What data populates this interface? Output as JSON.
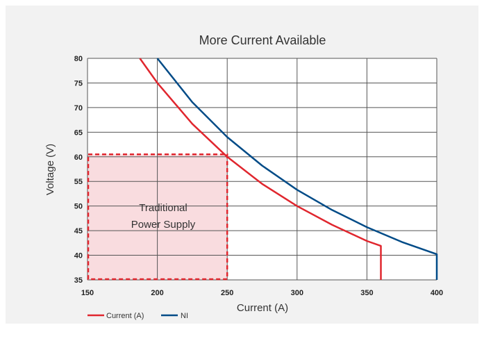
{
  "chart_data": {
    "type": "line",
    "title": "More Current Available",
    "xlabel": "Current (A)",
    "ylabel": "Voltage (V)",
    "xlim": [
      150,
      400
    ],
    "ylim": [
      35,
      80
    ],
    "x_ticks": [
      150,
      200,
      250,
      300,
      350,
      400
    ],
    "y_ticks": [
      35,
      40,
      45,
      50,
      55,
      60,
      65,
      70,
      75,
      80
    ],
    "grid": true,
    "legend_position": "bottom-left",
    "series": [
      {
        "name": "Current (A)",
        "color": "#e0262e",
        "points": [
          [
            187.5,
            80
          ],
          [
            200,
            75
          ],
          [
            225,
            66.7
          ],
          [
            250,
            60
          ],
          [
            275,
            54.5
          ],
          [
            300,
            50
          ],
          [
            325,
            46.2
          ],
          [
            350,
            42.9
          ],
          [
            360,
            41.9
          ],
          [
            360,
            35
          ]
        ]
      },
      {
        "name": "NI",
        "color": "#004b87",
        "points": [
          [
            200,
            80
          ],
          [
            225,
            71.1
          ],
          [
            250,
            64
          ],
          [
            275,
            58.2
          ],
          [
            300,
            53.3
          ],
          [
            325,
            49.2
          ],
          [
            350,
            45.7
          ],
          [
            375,
            42.7
          ],
          [
            400,
            40.2
          ],
          [
            400,
            35
          ]
        ]
      }
    ],
    "annotations": [
      {
        "type": "region",
        "x_range": [
          150,
          250
        ],
        "y_range": [
          35,
          60.5
        ],
        "fill": "#f9dcdf",
        "border": "#e0262e",
        "label_lines": [
          "Traditional",
          "Power Supply"
        ]
      }
    ]
  }
}
